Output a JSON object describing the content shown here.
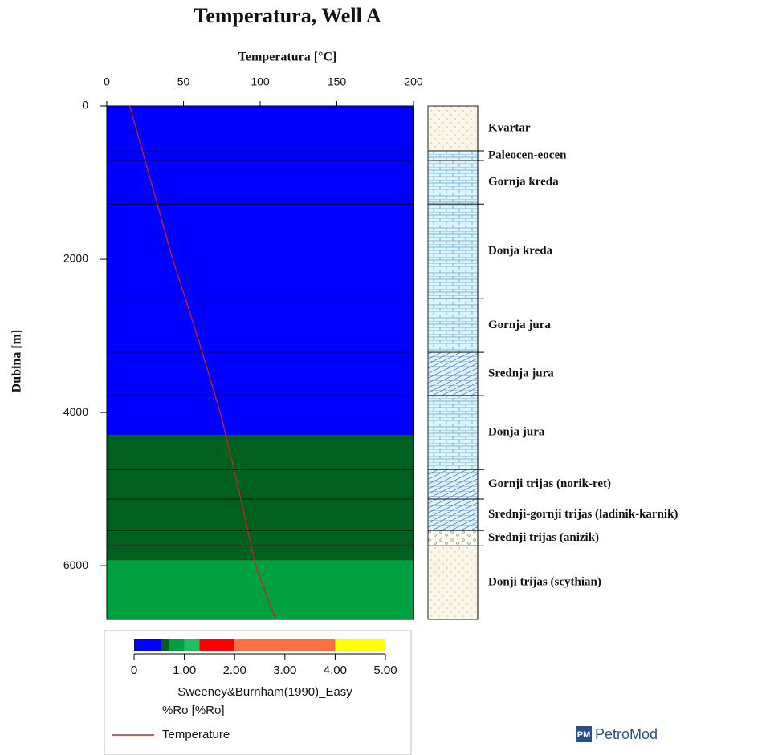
{
  "chart_data": {
    "type": "line",
    "title": "Temperatura, Well A",
    "x_label": "Temperatura [°C]",
    "y_label": "Dubina [m]",
    "xlim": [
      0,
      200
    ],
    "xticks": [
      0,
      50,
      100,
      150,
      200
    ],
    "ylim": [
      0,
      6700
    ],
    "yticks": [
      0,
      2000,
      4000,
      6000
    ],
    "y_inverted": true,
    "series": [
      {
        "name": "Temperature",
        "color": "#cc2020",
        "depth": [
          0,
          1000,
          2000,
          3000,
          4000,
          5000,
          6000,
          6700
        ],
        "values": [
          15,
          29,
          43,
          59,
          74,
          86,
          97,
          110
        ]
      }
    ],
    "maturity_zones": [
      {
        "top": 0,
        "bottom": 4300,
        "color": "#0000ff"
      },
      {
        "top": 4300,
        "bottom": 5930,
        "color": "#006020"
      },
      {
        "top": 5930,
        "bottom": 6700,
        "color": "#00a040"
      }
    ],
    "layers": [
      {
        "name": "Kvartar",
        "top": 0,
        "bottom": 586,
        "pattern": "dots"
      },
      {
        "name": "Paleocen-eocen",
        "top": 586,
        "bottom": 712,
        "pattern": "brick"
      },
      {
        "name": "Gornja kreda",
        "top": 712,
        "bottom": 1280,
        "pattern": "brick"
      },
      {
        "name": "Donja kreda",
        "top": 1280,
        "bottom": 2510,
        "pattern": "brick"
      },
      {
        "name": "Gornja jura",
        "top": 2510,
        "bottom": 3215,
        "pattern": "brick"
      },
      {
        "name": "Srednja jura",
        "top": 3215,
        "bottom": 3780,
        "pattern": "hatch"
      },
      {
        "name": "Donja jura",
        "top": 3780,
        "bottom": 4745,
        "pattern": "brick"
      },
      {
        "name": "Gornji trijas (norik-ret)",
        "top": 4745,
        "bottom": 5130,
        "pattern": "hatch"
      },
      {
        "name": "Srednji-gornji trijas (ladinik-karnik)",
        "top": 5130,
        "bottom": 5540,
        "pattern": "hatch"
      },
      {
        "name": "Srednji trijas (anizik)",
        "top": 5540,
        "bottom": 5740,
        "pattern": "gravel"
      },
      {
        "name": "Donji trijas (scythian)",
        "top": 5740,
        "bottom": 6700,
        "pattern": "dots"
      }
    ],
    "colorbar": {
      "title": "Sweeney&Burnham(1990)_Easy",
      "unit": "%Ro [%Ro]",
      "lim": [
        0,
        5
      ],
      "bounds": [
        0,
        0.55,
        0.7,
        1.0,
        1.3,
        2.0,
        4.0,
        5.0
      ],
      "colors": [
        "#0000ff",
        "#006020",
        "#00a040",
        "#20c060",
        "#ff0000",
        "#ff7040",
        "#ffff00"
      ],
      "ticks": [
        0,
        {
          "value": 1,
          "label": "1.00"
        },
        {
          "value": 2,
          "label": "2.00"
        },
        {
          "value": 3,
          "label": "3.00"
        },
        {
          "value": 4,
          "label": "4.00"
        },
        {
          "value": 5,
          "label": "5.00"
        }
      ]
    },
    "logo_badge": "PM",
    "logo": "PetroMod"
  }
}
